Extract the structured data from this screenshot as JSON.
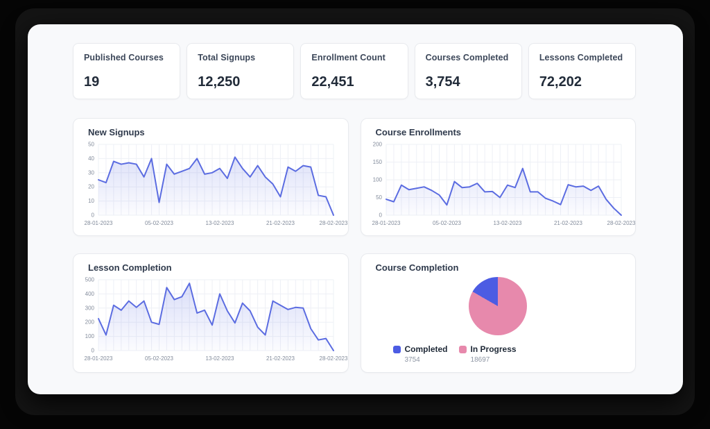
{
  "stats": [
    {
      "label": "Published Courses",
      "value": "19"
    },
    {
      "label": "Total Signups",
      "value": "12,250"
    },
    {
      "label": "Enrollment Count",
      "value": "22,451"
    },
    {
      "label": "Courses Completed",
      "value": "3,754"
    },
    {
      "label": "Lessons Completed",
      "value": "72,202"
    }
  ],
  "colors": {
    "line": "#5b6ce1",
    "grid": "#eef0f6",
    "tick_text": "#828b9b",
    "pie_completed": "#4c5ce3",
    "pie_in_progress": "#e789ac",
    "panel_bg": "#f8f9fb",
    "card_bg": "#ffffff"
  },
  "chart_data": [
    {
      "type": "line",
      "title": "New Signups",
      "x_range": "daily from 28-01-2023 to 28-02-2023",
      "x_tick_labels": [
        "28-01-2023",
        "05-02-2023",
        "13-02-2023",
        "21-02-2023",
        "28-02-2023"
      ],
      "x_tick_indices": [
        0,
        8,
        16,
        24,
        31
      ],
      "values": [
        25,
        23,
        38,
        36,
        37,
        36,
        27,
        40,
        9,
        36,
        29,
        31,
        33,
        40,
        29,
        30,
        33,
        26,
        41,
        33,
        27,
        35,
        27,
        22,
        13,
        34,
        31,
        35,
        34,
        14,
        13,
        0
      ],
      "ylim": [
        0,
        50
      ],
      "yticks": [
        0,
        10,
        20,
        30,
        40,
        50
      ],
      "grid": true,
      "area_fill": true
    },
    {
      "type": "line",
      "title": "Course Enrollments",
      "x_range": "daily from 28-01-2023 to 28-02-2023",
      "x_tick_labels": [
        "28-01-2023",
        "05-02-2023",
        "13-02-2023",
        "21-02-2023",
        "28-02-2023"
      ],
      "x_tick_indices": [
        0,
        8,
        16,
        24,
        31
      ],
      "values": [
        45,
        38,
        85,
        72,
        76,
        80,
        70,
        57,
        29,
        95,
        78,
        80,
        90,
        66,
        67,
        50,
        85,
        78,
        132,
        66,
        66,
        48,
        40,
        30,
        86,
        80,
        82,
        70,
        82,
        45,
        20,
        0
      ],
      "ylim": [
        0,
        200
      ],
      "yticks": [
        0,
        50,
        100,
        150,
        200
      ],
      "grid": true,
      "area_fill": true
    },
    {
      "type": "line",
      "title": "Lesson Completion",
      "x_range": "daily from 28-01-2023 to 28-02-2023",
      "x_tick_labels": [
        "28-01-2023",
        "05-02-2023",
        "13-02-2023",
        "21-02-2023",
        "28-02-2023"
      ],
      "x_tick_indices": [
        0,
        8,
        16,
        24,
        31
      ],
      "values": [
        225,
        110,
        320,
        285,
        350,
        305,
        350,
        200,
        185,
        445,
        360,
        380,
        475,
        265,
        285,
        180,
        400,
        280,
        195,
        335,
        280,
        165,
        110,
        350,
        320,
        290,
        305,
        300,
        155,
        75,
        85,
        0
      ],
      "ylim": [
        0,
        500
      ],
      "yticks": [
        0,
        100,
        200,
        300,
        400,
        500
      ],
      "grid": true,
      "area_fill": true
    },
    {
      "type": "pie",
      "title": "Course Completion",
      "legend_position": "bottom-left",
      "slices": [
        {
          "label": "Completed",
          "value": 3754,
          "value_text": "3754",
          "color": "#4c5ce3"
        },
        {
          "label": "In Progress",
          "value": 18697,
          "value_text": "18697",
          "color": "#e789ac"
        }
      ]
    }
  ]
}
